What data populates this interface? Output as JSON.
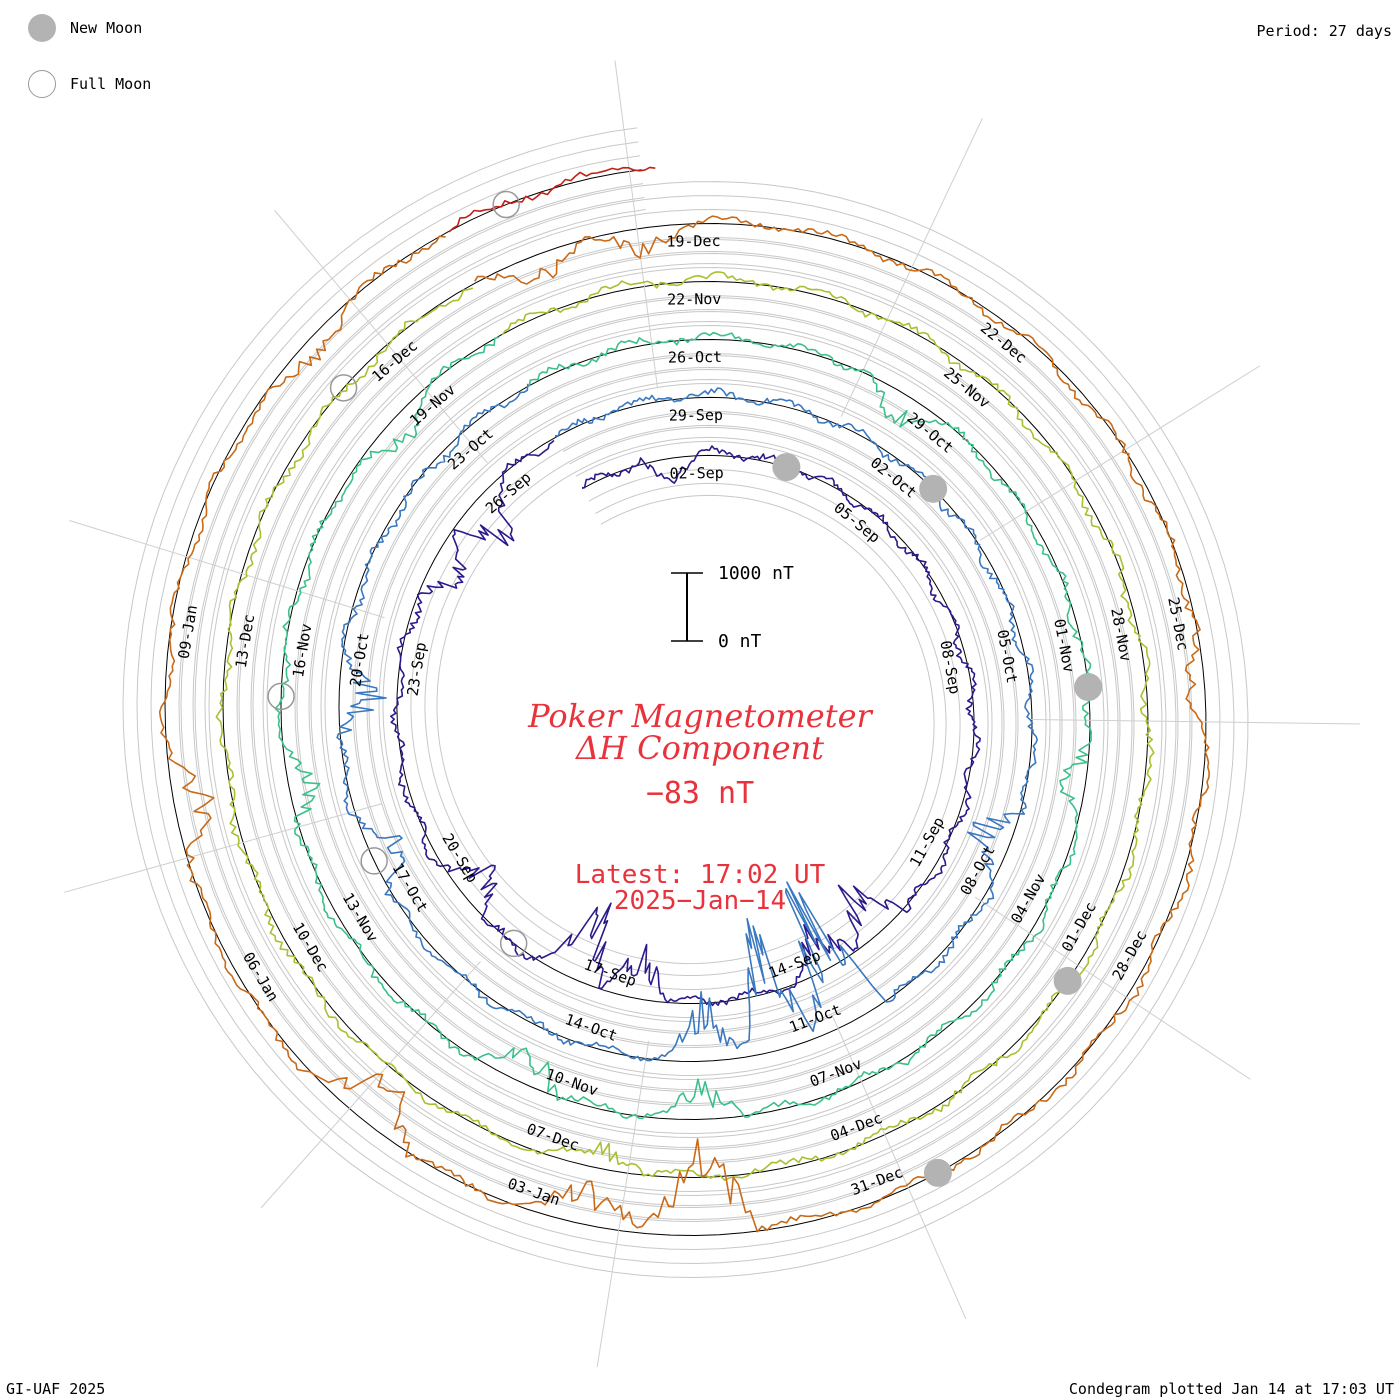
{
  "legend": {
    "new_moon_label": "New Moon",
    "full_moon_label": "Full Moon"
  },
  "period_label": "Period: 27 days",
  "credit": "GI-UAF 2025",
  "plotted_label": "Condegram plotted Jan 14 at 17:03 UT",
  "title_line1": "Poker Magnetometer",
  "title_line2": "ΔH Component",
  "current_value": "−83 nT",
  "latest_line1": "Latest: 17:02 UT",
  "latest_line2": "2025−Jan−14",
  "scale_bar": {
    "top_label": "1000 nT",
    "bottom_label": "0 nT"
  },
  "colors": {
    "text_red": "#e8323c",
    "grid": "#c8c8c8",
    "baseline": "#000000",
    "new_moon": "#b3b3b3"
  },
  "chart_data": {
    "type": "line",
    "variant": "spiral condegram",
    "period_days": 27,
    "y_unit": "nT",
    "start_date": "2024-08-31",
    "end_date": "2025-01-14",
    "series_colors_by_rotation": [
      "#1a1030",
      "#2a1a8c",
      "#2e3fb0",
      "#3a78c0",
      "#3aa8b8",
      "#3cc08a",
      "#5cc050",
      "#a8c030",
      "#d09a28",
      "#c86a18",
      "#c04010",
      "#c02018"
    ],
    "date_labels": [
      {
        "label": "02-Sep",
        "date": "2024-09-02"
      },
      {
        "label": "05-Sep",
        "date": "2024-09-05"
      },
      {
        "label": "08-Sep",
        "date": "2024-09-08"
      },
      {
        "label": "11-Sep",
        "date": "2024-09-11"
      },
      {
        "label": "14-Sep",
        "date": "2024-09-14"
      },
      {
        "label": "17-Sep",
        "date": "2024-09-17"
      },
      {
        "label": "20-Sep",
        "date": "2024-09-20"
      },
      {
        "label": "23-Sep",
        "date": "2024-09-23"
      },
      {
        "label": "26-Sep",
        "date": "2024-09-26"
      },
      {
        "label": "29-Sep",
        "date": "2024-09-29"
      },
      {
        "label": "02-Oct",
        "date": "2024-10-02"
      },
      {
        "label": "05-Oct",
        "date": "2024-10-05"
      },
      {
        "label": "08-Oct",
        "date": "2024-10-08"
      },
      {
        "label": "11-Oct",
        "date": "2024-10-11"
      },
      {
        "label": "14-Oct",
        "date": "2024-10-14"
      },
      {
        "label": "17-Oct",
        "date": "2024-10-17"
      },
      {
        "label": "20-Oct",
        "date": "2024-10-20"
      },
      {
        "label": "23-Oct",
        "date": "2024-10-23"
      },
      {
        "label": "26-Oct",
        "date": "2024-10-26"
      },
      {
        "label": "29-Oct",
        "date": "2024-10-29"
      },
      {
        "label": "01-Nov",
        "date": "2024-11-01"
      },
      {
        "label": "04-Nov",
        "date": "2024-11-04"
      },
      {
        "label": "07-Nov",
        "date": "2024-11-07"
      },
      {
        "label": "10-Nov",
        "date": "2024-11-10"
      },
      {
        "label": "13-Nov",
        "date": "2024-11-13"
      },
      {
        "label": "16-Nov",
        "date": "2024-11-16"
      },
      {
        "label": "19-Nov",
        "date": "2024-11-19"
      },
      {
        "label": "22-Nov",
        "date": "2024-11-22"
      },
      {
        "label": "25-Nov",
        "date": "2024-11-25"
      },
      {
        "label": "28-Nov",
        "date": "2024-11-28"
      },
      {
        "label": "01-Dec",
        "date": "2024-12-01"
      },
      {
        "label": "04-Dec",
        "date": "2024-12-04"
      },
      {
        "label": "07-Dec",
        "date": "2024-12-07"
      },
      {
        "label": "10-Dec",
        "date": "2024-12-10"
      },
      {
        "label": "13-Dec",
        "date": "2024-12-13"
      },
      {
        "label": "16-Dec",
        "date": "2024-12-16"
      },
      {
        "label": "19-Dec",
        "date": "2024-12-19"
      },
      {
        "label": "22-Dec",
        "date": "2024-12-22"
      },
      {
        "label": "25-Dec",
        "date": "2024-12-25"
      },
      {
        "label": "28-Dec",
        "date": "2024-12-28"
      },
      {
        "label": "31-Dec",
        "date": "2024-12-31"
      },
      {
        "label": "03-Jan",
        "date": "2025-01-03"
      },
      {
        "label": "06-Jan",
        "date": "2025-01-06"
      },
      {
        "label": "09-Jan",
        "date": "2025-01-09"
      }
    ],
    "new_moons": [
      "2024-09-03",
      "2024-10-02",
      "2024-11-01",
      "2024-12-01",
      "2024-12-30"
    ],
    "full_moons": [
      "2024-09-18",
      "2024-10-17",
      "2024-11-15",
      "2024-12-15",
      "2025-01-13"
    ],
    "disturbances": [
      {
        "date": "2024-09-01",
        "amp": 300
      },
      {
        "date": "2024-09-12",
        "amp": 700
      },
      {
        "date": "2024-09-13",
        "amp": 500
      },
      {
        "date": "2024-09-16",
        "amp": 600
      },
      {
        "date": "2024-09-17",
        "amp": 900
      },
      {
        "date": "2024-09-19",
        "amp": 500
      },
      {
        "date": "2024-09-24",
        "amp": 400
      },
      {
        "date": "2024-09-25",
        "amp": 600
      },
      {
        "date": "2024-10-07",
        "amp": 500
      },
      {
        "date": "2024-10-10",
        "amp": 1800
      },
      {
        "date": "2024-10-11",
        "amp": 1400
      },
      {
        "date": "2024-10-12",
        "amp": 700
      },
      {
        "date": "2024-10-17",
        "amp": 400
      },
      {
        "date": "2024-10-19",
        "amp": 450
      },
      {
        "date": "2024-10-28",
        "amp": 350
      },
      {
        "date": "2024-11-02",
        "amp": 300
      },
      {
        "date": "2024-11-08",
        "amp": 350
      },
      {
        "date": "2024-11-10",
        "amp": 400
      },
      {
        "date": "2024-11-14",
        "amp": 300
      },
      {
        "date": "2024-11-18",
        "amp": 250
      },
      {
        "date": "2024-12-06",
        "amp": 250
      },
      {
        "date": "2024-12-17",
        "amp": 350
      },
      {
        "date": "2024-12-18",
        "amp": 300
      },
      {
        "date": "2024-12-25",
        "amp": 250
      },
      {
        "date": "2025-01-01",
        "amp": 1000
      },
      {
        "date": "2025-01-02",
        "amp": 450
      },
      {
        "date": "2025-01-04",
        "amp": 600
      },
      {
        "date": "2025-01-07",
        "amp": 400
      },
      {
        "date": "2025-01-11",
        "amp": 200
      }
    ],
    "latest_value_nT": -83
  }
}
